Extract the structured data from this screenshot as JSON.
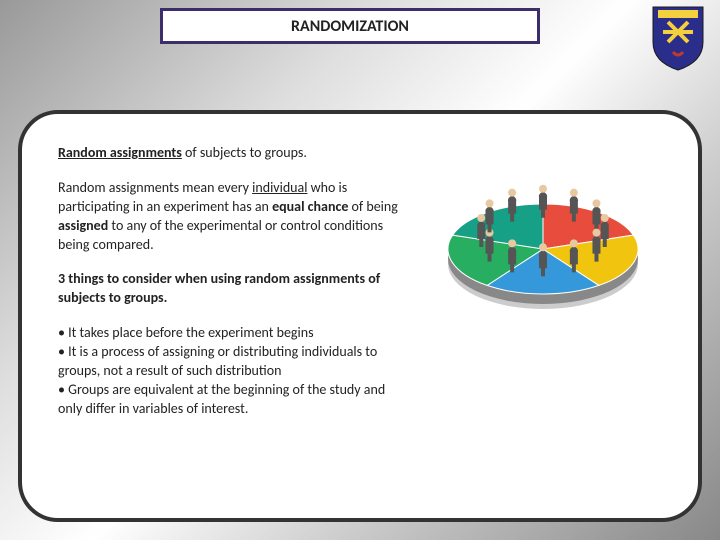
{
  "title": "RANDOMIZATION",
  "crest": {
    "shield_color": "#2b2d8a",
    "ribbon_color": "#f4d03f",
    "accent_color": "#c0392b",
    "outline": "#1a1a1a"
  },
  "content": {
    "heading_part1": "Random assignments",
    "heading_part2": " of subjects to groups.",
    "para_seg1": "Random assignments mean every ",
    "para_seg2_u": "individual",
    "para_seg3": " who is participating in an experiment has an ",
    "para_seg4_b": "equal chance",
    "para_seg5": " of being ",
    "para_seg6_b": "assigned",
    "para_seg7": " to any of the experimental or control conditions being compared.",
    "subheading": "3 things to consider when using random assignments of subjects to groups.",
    "bullets": [
      "• It takes place before the experiment begins",
      "• It is a process of assigning or distributing individuals to groups, not a result of such distribution",
      "• Groups are equivalent at the beginning of the study and only differ in variables of interest."
    ]
  },
  "pie_chart": {
    "type": "pie",
    "slices": [
      {
        "color": "#e74c3c",
        "start": -90,
        "end": -18
      },
      {
        "color": "#f1c40f",
        "start": -18,
        "end": 54
      },
      {
        "color": "#3498db",
        "start": 54,
        "end": 126
      },
      {
        "color": "#27ae60",
        "start": 126,
        "end": 198
      },
      {
        "color": "#16a085",
        "start": 198,
        "end": 270
      }
    ],
    "figure_color": "#555",
    "figure_head_color": "#e8c8a0",
    "shadow_color": "#ccc",
    "background_color": "#ffffff"
  }
}
